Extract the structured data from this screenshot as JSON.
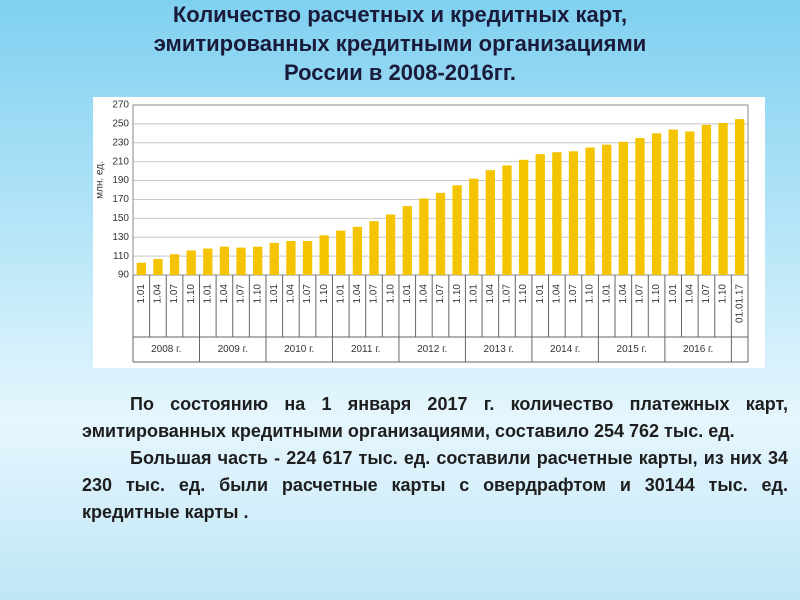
{
  "title": [
    "Количество расчетных и кредитных карт,",
    "эмитированных кредитными организациями",
    "России в 2008-2016гг."
  ],
  "chart_data": {
    "type": "bar",
    "y_label": "млн. ед.",
    "categories": [
      "1.01",
      "1.04",
      "1.07",
      "1.10",
      "1.01",
      "1.04",
      "1.07",
      "1.10",
      "1.01",
      "1.04",
      "1.07",
      "1.10",
      "1.01",
      "1.04",
      "1.07",
      "1.10",
      "1.01",
      "1.04",
      "1.07",
      "1.10",
      "1.01",
      "1.04",
      "1.07",
      "1.10",
      "1.01",
      "1.04",
      "1.07",
      "1.10",
      "1.01",
      "1.04",
      "1.07",
      "1.10",
      "1.01",
      "1.04",
      "1.07",
      "1.10",
      "01.01.17"
    ],
    "year_groups": [
      "2008 г.",
      "2009 г.",
      "2010 г.",
      "2011 г.",
      "2012 г.",
      "2013 г.",
      "2014 г.",
      "2015 г.",
      "2016 г."
    ],
    "values": [
      103,
      107,
      112,
      116,
      118,
      120,
      119,
      120,
      124,
      126,
      126,
      132,
      137,
      141,
      147,
      154,
      163,
      171,
      177,
      185,
      192,
      201,
      206,
      212,
      218,
      220,
      221,
      225,
      228,
      231,
      235,
      240,
      244,
      242,
      249,
      251,
      255
    ],
    "color": "#f5c400",
    "ylim": [
      90,
      270
    ],
    "yticks": [
      90,
      110,
      130,
      150,
      170,
      190,
      210,
      230,
      250,
      270
    ],
    "grid": true
  },
  "paragraphs": [
    "По состоянию на 1 января 2017 г. количество платежных карт, эмитированных кредитными организациями, составило 254 762 тыс. ед.",
    "Большая часть - 224 617 тыс. ед. составили расчетные карты, из них 34 230 тыс. ед. были расчетные карты с овердрафтом и 30144 тыс. ед. кредитные карты ."
  ]
}
